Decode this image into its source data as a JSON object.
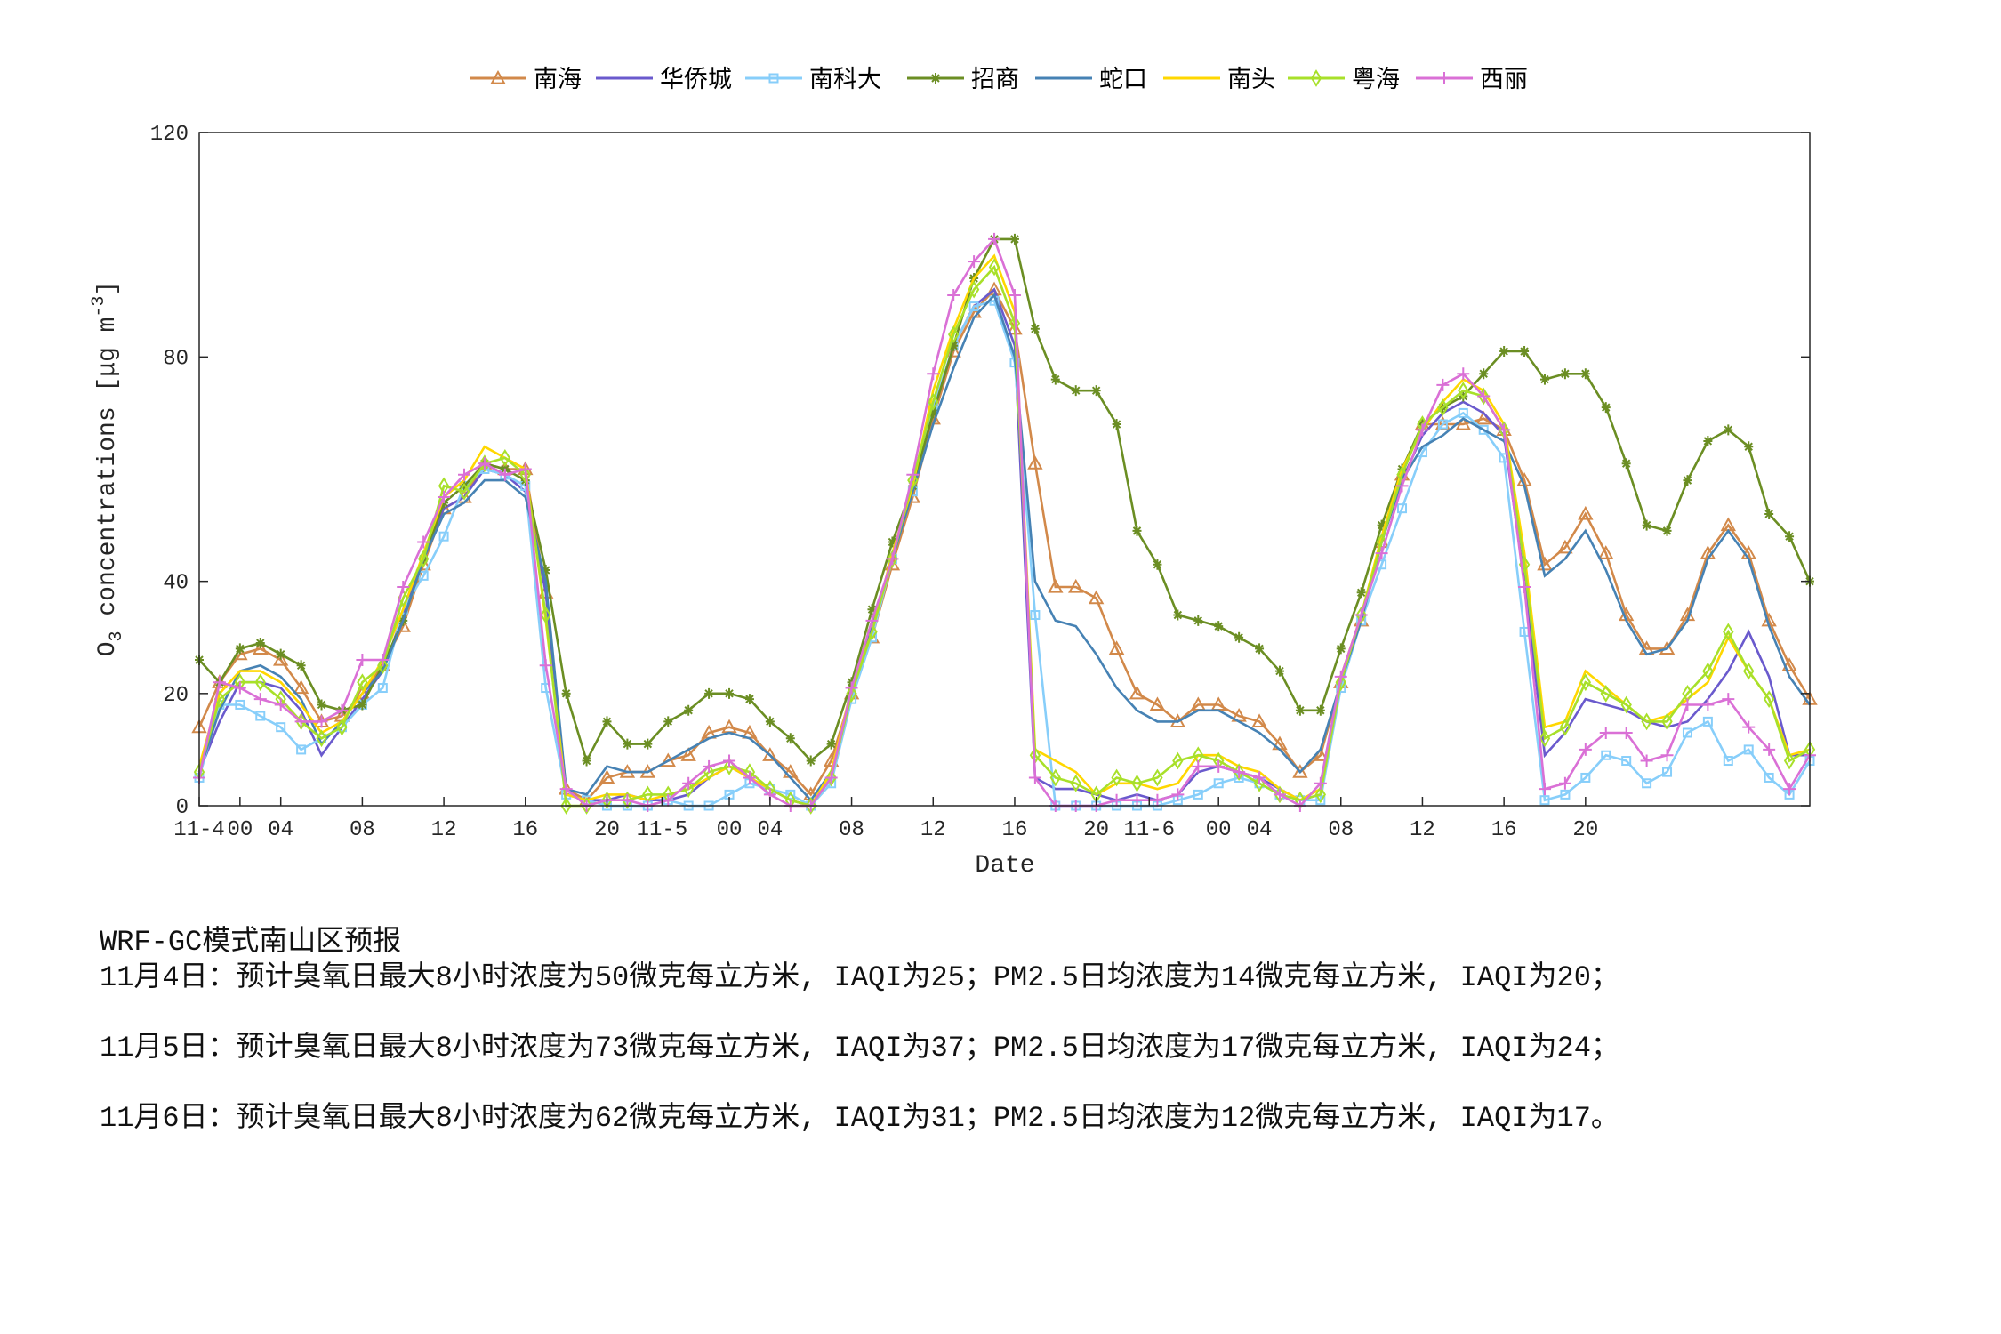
{
  "chart_data": {
    "type": "line",
    "title": "",
    "xlabel": "Date",
    "ylabel": "O3 concentrations [μg m-3]",
    "ylabel_parts": {
      "main": "O",
      "sub": "3",
      "rest": " concentrations [μg m",
      "sup": "-3",
      "end": "]"
    },
    "ylim": [
      0,
      120
    ],
    "xlim": [
      0,
      79
    ],
    "yticks": [
      0,
      20,
      40,
      80,
      120
    ],
    "xticks": [
      {
        "hour": 0,
        "label": "11-4"
      },
      {
        "hour": 2,
        "label": "00"
      },
      {
        "hour": 4,
        "label": "04"
      },
      {
        "hour": 8,
        "label": "08"
      },
      {
        "hour": 12,
        "label": "12"
      },
      {
        "hour": 16,
        "label": "16"
      },
      {
        "hour": 20,
        "label": "20"
      },
      {
        "hour": 22.7,
        "label": "11-5"
      },
      {
        "hour": 26,
        "label": "00"
      },
      {
        "hour": 28,
        "label": "04"
      },
      {
        "hour": 32,
        "label": "08"
      },
      {
        "hour": 36,
        "label": "12"
      },
      {
        "hour": 40,
        "label": "16"
      },
      {
        "hour": 44,
        "label": "20"
      },
      {
        "hour": 46.6,
        "label": "11-6"
      },
      {
        "hour": 50,
        "label": "00"
      },
      {
        "hour": 52,
        "label": "04"
      },
      {
        "hour": 56,
        "label": "08"
      },
      {
        "hour": 60,
        "label": "12"
      },
      {
        "hour": 64,
        "label": "16"
      },
      {
        "hour": 68,
        "label": "20"
      }
    ],
    "legend_position": "top-center",
    "grid": false,
    "series": [
      {
        "name": "南海",
        "color": "#d2894a",
        "marker": "triangle",
        "values": [
          14,
          22,
          27,
          28,
          26,
          21,
          15,
          16,
          20,
          25,
          32,
          43,
          53,
          55,
          61,
          60,
          60,
          38,
          3,
          1,
          5,
          6,
          6,
          8,
          9,
          13,
          14,
          13,
          9,
          6,
          2,
          8,
          20,
          30,
          43,
          55,
          69,
          81,
          88,
          92,
          85,
          61,
          39,
          39,
          37,
          28,
          20,
          18,
          15,
          18,
          18,
          16,
          15,
          11,
          6,
          9,
          22,
          33,
          47,
          59,
          68,
          68,
          68,
          69,
          67,
          58,
          43,
          46,
          52,
          45,
          34,
          28,
          28,
          34,
          45,
          50,
          45,
          33,
          25,
          19
        ]
      },
      {
        "name": "华侨城",
        "color": "#6a5acd",
        "marker": "none",
        "values": [
          6,
          15,
          22,
          22,
          21,
          17,
          9,
          14,
          19,
          24,
          34,
          45,
          53,
          55,
          60,
          59,
          56,
          38,
          2,
          1,
          1,
          2,
          1,
          1,
          2,
          5,
          7,
          5,
          3,
          1,
          0,
          5,
          20,
          31,
          44,
          57,
          70,
          82,
          89,
          92,
          82,
          5,
          3,
          3,
          2,
          1,
          2,
          1,
          2,
          6,
          7,
          6,
          5,
          3,
          1,
          2,
          22,
          34,
          47,
          58,
          66,
          70,
          72,
          70,
          66,
          40,
          9,
          13,
          19,
          18,
          17,
          15,
          14,
          15,
          19,
          24,
          31,
          23,
          9,
          9
        ]
      },
      {
        "name": "南科大",
        "color": "#87cefa",
        "marker": "square",
        "values": [
          5,
          18,
          18,
          16,
          14,
          10,
          12,
          14,
          18,
          21,
          35,
          41,
          48,
          57,
          60,
          59,
          57,
          21,
          2,
          1,
          0,
          0,
          0,
          1,
          0,
          0,
          2,
          4,
          3,
          2,
          0,
          4,
          19,
          30,
          44,
          56,
          71,
          82,
          89,
          90,
          79,
          34,
          0,
          0,
          0,
          0,
          0,
          0,
          1,
          2,
          4,
          5,
          4,
          2,
          1,
          1,
          21,
          33,
          43,
          53,
          63,
          68,
          70,
          67,
          62,
          31,
          1,
          2,
          5,
          9,
          8,
          4,
          6,
          13,
          15,
          8,
          10,
          5,
          2,
          8
        ]
      },
      {
        "name": "招商",
        "color": "#6b8e23",
        "marker": "asterisk",
        "values": [
          26,
          22,
          28,
          29,
          27,
          25,
          18,
          17,
          18,
          25,
          33,
          44,
          54,
          57,
          61,
          60,
          58,
          42,
          20,
          8,
          15,
          11,
          11,
          15,
          17,
          20,
          20,
          19,
          15,
          12,
          8,
          11,
          22,
          35,
          47,
          57,
          70,
          82,
          94,
          101,
          101,
          85,
          76,
          74,
          74,
          68,
          49,
          43,
          34,
          33,
          32,
          30,
          28,
          24,
          17,
          17,
          28,
          38,
          50,
          60,
          68,
          71,
          73,
          77,
          81,
          81,
          76,
          77,
          77,
          71,
          61,
          50,
          49,
          58,
          65,
          67,
          64,
          52,
          48,
          40
        ]
      },
      {
        "name": "蛇口",
        "color": "#4682b4",
        "marker": "none",
        "values": [
          6,
          17,
          24,
          25,
          23,
          19,
          11,
          15,
          20,
          24,
          33,
          44,
          52,
          54,
          58,
          58,
          55,
          40,
          3,
          2,
          7,
          6,
          6,
          8,
          10,
          12,
          13,
          12,
          9,
          5,
          1,
          6,
          20,
          32,
          44,
          56,
          68,
          78,
          87,
          91,
          80,
          40,
          33,
          32,
          27,
          21,
          17,
          15,
          15,
          17,
          17,
          15,
          13,
          10,
          6,
          10,
          22,
          33,
          47,
          58,
          64,
          66,
          69,
          67,
          65,
          57,
          41,
          44,
          49,
          42,
          33,
          27,
          28,
          33,
          44,
          49,
          44,
          32,
          23,
          18
        ]
      },
      {
        "name": "南头",
        "color": "#ffd700",
        "marker": "none",
        "values": [
          7,
          20,
          24,
          24,
          22,
          18,
          13,
          15,
          20,
          26,
          35,
          45,
          55,
          58,
          64,
          62,
          60,
          33,
          2,
          1,
          2,
          2,
          1,
          2,
          3,
          5,
          7,
          5,
          3,
          1,
          0,
          6,
          21,
          31,
          45,
          57,
          74,
          85,
          94,
          98,
          88,
          10,
          8,
          6,
          2,
          4,
          4,
          3,
          4,
          9,
          9,
          7,
          6,
          3,
          1,
          3,
          23,
          34,
          48,
          60,
          67,
          72,
          76,
          74,
          68,
          45,
          14,
          15,
          24,
          21,
          18,
          15,
          16,
          19,
          22,
          30,
          24,
          19,
          9,
          10
        ]
      },
      {
        "name": "粤海",
        "color": "#a8e02a",
        "marker": "diamond",
        "values": [
          6,
          19,
          22,
          22,
          19,
          15,
          12,
          14,
          22,
          25,
          37,
          44,
          57,
          56,
          61,
          62,
          59,
          34,
          0,
          0,
          1,
          1,
          2,
          2,
          3,
          6,
          7,
          6,
          3,
          1,
          0,
          5,
          20,
          31,
          44,
          58,
          72,
          84,
          92,
          96,
          86,
          9,
          5,
          4,
          2,
          5,
          4,
          5,
          8,
          9,
          8,
          6,
          4,
          2,
          1,
          2,
          22,
          34,
          47,
          59,
          68,
          71,
          74,
          73,
          67,
          43,
          12,
          14,
          22,
          20,
          18,
          15,
          15,
          20,
          24,
          31,
          24,
          19,
          8,
          10
        ]
      },
      {
        "name": "西丽",
        "color": "#da70d6",
        "marker": "plus",
        "values": [
          5,
          22,
          21,
          19,
          18,
          15,
          15,
          17,
          26,
          26,
          39,
          47,
          55,
          59,
          61,
          59,
          60,
          25,
          3,
          0,
          1,
          1,
          0,
          1,
          4,
          7,
          8,
          5,
          2,
          0,
          0,
          5,
          21,
          33,
          44,
          59,
          77,
          91,
          97,
          101,
          91,
          5,
          0,
          0,
          0,
          1,
          1,
          1,
          2,
          7,
          7,
          6,
          5,
          2,
          0,
          4,
          23,
          34,
          45,
          57,
          67,
          75,
          77,
          73,
          67,
          39,
          3,
          4,
          10,
          13,
          13,
          8,
          9,
          18,
          18,
          19,
          14,
          10,
          3,
          9
        ]
      }
    ]
  },
  "forecast": {
    "title": "WRF-GC模式南山区预报",
    "lines": [
      "11月4日：预计臭氧日最大8小时浓度为50微克每立方米, IAQI为25；PM2.5日均浓度为14微克每立方米, IAQI为20；",
      "11月5日：预计臭氧日最大8小时浓度为73微克每立方米, IAQI为37；PM2.5日均浓度为17微克每立方米, IAQI为24；",
      "11月6日：预计臭氧日最大8小时浓度为62微克每立方米, IAQI为31；PM2.5日均浓度为12微克每立方米, IAQI为17。"
    ]
  }
}
